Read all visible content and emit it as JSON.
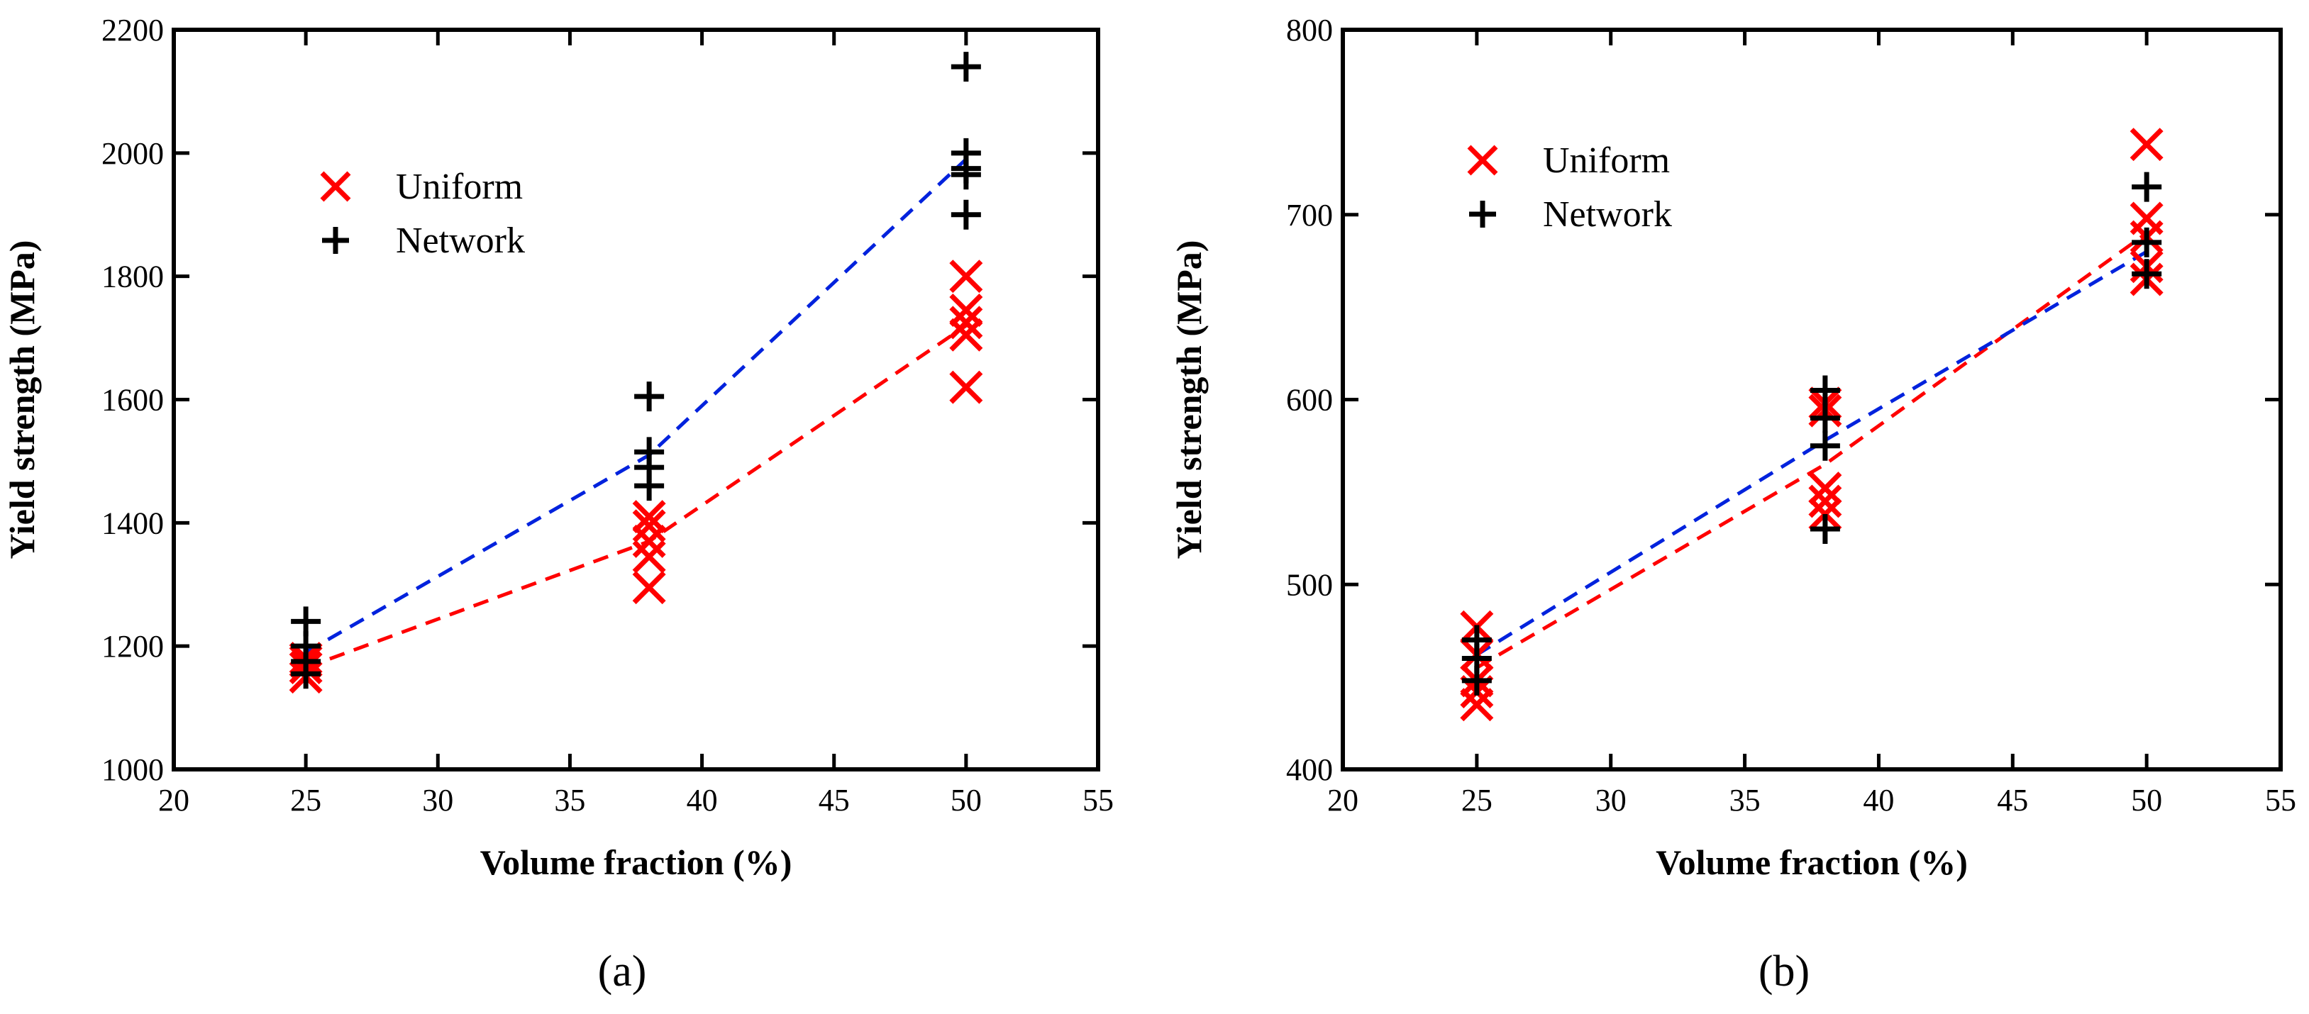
{
  "chart_data": [
    {
      "type": "scatter",
      "panel": "a",
      "caption": "(a)",
      "xlabel": "Volume fraction (%)",
      "ylabel": "Yield strength (MPa)",
      "xlim": [
        20,
        55
      ],
      "ylim": [
        1000,
        2200
      ],
      "xticks": [
        20,
        25,
        30,
        35,
        40,
        45,
        50,
        55
      ],
      "yticks": [
        1000,
        1200,
        1400,
        1600,
        1800,
        2000,
        2200
      ],
      "legend_position": "upper-left",
      "series": [
        {
          "name": "Uniform",
          "marker": "x",
          "color": "#ff0000",
          "points": [
            [
              25,
              1150
            ],
            [
              25,
              1165
            ],
            [
              25,
              1175
            ],
            [
              25,
              1180
            ],
            [
              38,
              1295
            ],
            [
              38,
              1345
            ],
            [
              38,
              1370
            ],
            [
              38,
              1395
            ],
            [
              38,
              1410
            ],
            [
              50,
              1620
            ],
            [
              50,
              1705
            ],
            [
              50,
              1725
            ],
            [
              50,
              1745
            ],
            [
              50,
              1800
            ]
          ],
          "trend": {
            "color": "#ff0000",
            "style": "dashed",
            "points": [
              [
                25,
                1165
              ],
              [
                38,
                1370
              ],
              [
                50,
                1720
              ]
            ]
          }
        },
        {
          "name": "Network",
          "marker": "+",
          "color": "#000000",
          "points": [
            [
              25,
              1155
            ],
            [
              25,
              1175
            ],
            [
              25,
              1200
            ],
            [
              25,
              1240
            ],
            [
              38,
              1460
            ],
            [
              38,
              1490
            ],
            [
              38,
              1515
            ],
            [
              38,
              1605
            ],
            [
              50,
              1900
            ],
            [
              50,
              1965
            ],
            [
              50,
              1975
            ],
            [
              50,
              2000
            ],
            [
              50,
              2140
            ]
          ],
          "trend": {
            "color": "#0022dd",
            "style": "dashed",
            "points": [
              [
                25,
                1190
              ],
              [
                38,
                1510
              ],
              [
                50,
                1990
              ]
            ]
          }
        }
      ]
    },
    {
      "type": "scatter",
      "panel": "b",
      "caption": "(b)",
      "xlabel": "Volume fraction (%)",
      "ylabel": "Yield strength (MPa)",
      "xlim": [
        20,
        55
      ],
      "ylim": [
        400,
        800
      ],
      "xticks": [
        20,
        25,
        30,
        35,
        40,
        45,
        50,
        55
      ],
      "yticks": [
        400,
        500,
        600,
        700,
        800
      ],
      "legend_position": "upper-left",
      "series": [
        {
          "name": "Uniform",
          "marker": "x",
          "color": "#ff0000",
          "points": [
            [
              25,
              435
            ],
            [
              25,
              442
            ],
            [
              25,
              448
            ],
            [
              25,
              462
            ],
            [
              25,
              477
            ],
            [
              38,
              538
            ],
            [
              38,
              545
            ],
            [
              38,
              552
            ],
            [
              38,
              594
            ],
            [
              38,
              598
            ],
            [
              50,
              665
            ],
            [
              50,
              672
            ],
            [
              50,
              688
            ],
            [
              50,
              698
            ],
            [
              50,
              738
            ]
          ],
          "trend": {
            "color": "#ff0000",
            "style": "dashed",
            "points": [
              [
                25,
                455
              ],
              [
                38,
                565
              ],
              [
                50,
                690
              ]
            ]
          }
        },
        {
          "name": "Network",
          "marker": "+",
          "color": "#000000",
          "points": [
            [
              25,
              448
            ],
            [
              25,
              460
            ],
            [
              25,
              470
            ],
            [
              38,
              530
            ],
            [
              38,
              575
            ],
            [
              38,
              590
            ],
            [
              38,
              605
            ],
            [
              50,
              668
            ],
            [
              50,
              685
            ],
            [
              50,
              715
            ]
          ],
          "trend": {
            "color": "#0022dd",
            "style": "dashed",
            "points": [
              [
                25,
                462
              ],
              [
                38,
                578
              ],
              [
                50,
                680
              ]
            ]
          }
        }
      ]
    }
  ]
}
